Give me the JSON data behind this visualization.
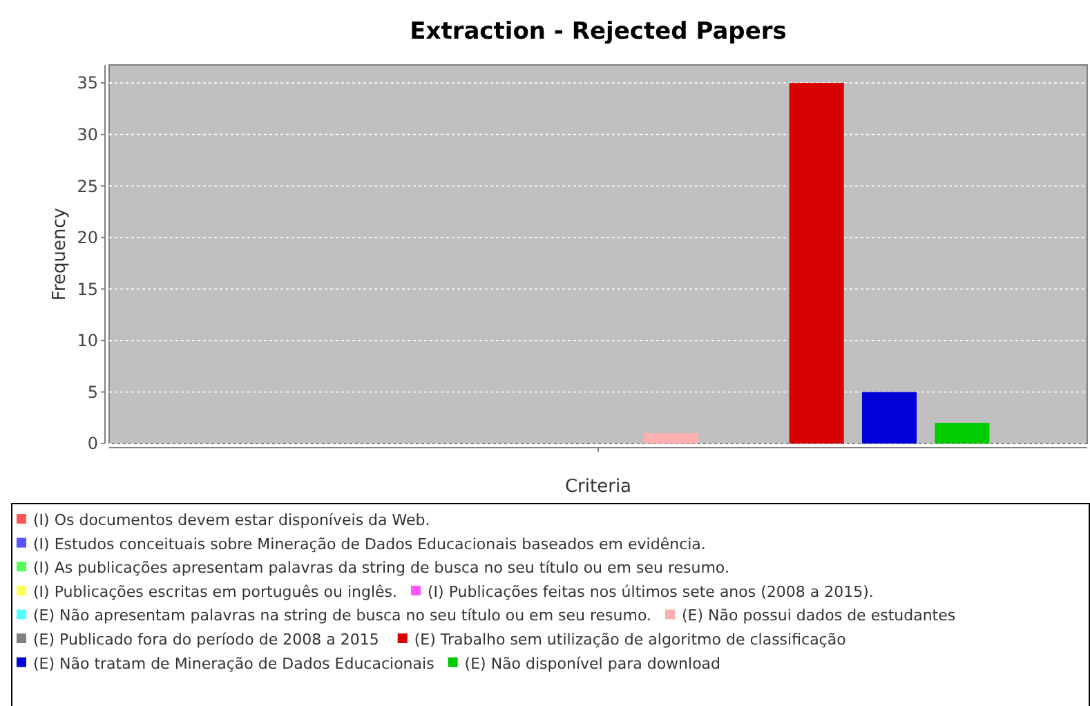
{
  "chart_data": {
    "type": "bar",
    "title": "Extraction - Rejected Papers",
    "xlabel": "Criteria",
    "ylabel": "Frequency",
    "categories": [
      null
    ],
    "series": [
      {
        "name": "(I) Os documentos devem estar disponíveis da Web.",
        "color": "#ff5555",
        "values": [
          0
        ]
      },
      {
        "name": "(I) Estudos conceituais sobre Mineração de Dados Educacionais baseados em evidência.",
        "color": "#5555ff",
        "values": [
          0
        ]
      },
      {
        "name": "(I) As publicações apresentam palavras da string de busca no seu título ou em seu resumo.",
        "color": "#55ff55",
        "values": [
          0
        ]
      },
      {
        "name": "(I) Publicações escritas em português ou inglês.",
        "color": "#ffff55",
        "values": [
          0
        ]
      },
      {
        "name": "(I) Publicações feitas nos últimos sete anos (2008 a 2015).",
        "color": "#ff55ff",
        "values": [
          0
        ]
      },
      {
        "name": "(E) Não apresentam palavras na string de busca no seu título ou em seu resumo.",
        "color": "#55ffff",
        "values": [
          0
        ]
      },
      {
        "name": "(E) Não possui dados de estudantes",
        "color": "#ffafaf",
        "values": [
          1
        ]
      },
      {
        "name": "(E) Publicado fora do  período de 2008 a 2015",
        "color": "#808080",
        "values": [
          0
        ]
      },
      {
        "name": "(E) Trabalho sem utilização de algoritmo de classificação",
        "color": "#d80000",
        "values": [
          35
        ]
      },
      {
        "name": "(E) Não tratam de Mineração de Dados Educacionais",
        "color": "#0000d8",
        "values": [
          5
        ]
      },
      {
        "name": "(E) Não disponível para download",
        "color": "#00cc00",
        "values": [
          2
        ]
      }
    ],
    "ylim": [
      0,
      36.75
    ],
    "yticks": [
      0,
      5,
      10,
      15,
      20,
      25,
      30,
      35
    ],
    "grid": "y",
    "legend": "bottom"
  }
}
